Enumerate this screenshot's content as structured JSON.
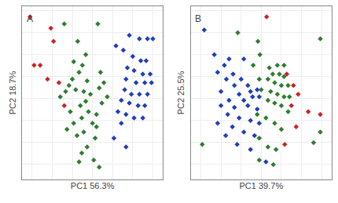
{
  "chart_data": [
    {
      "type": "scatter",
      "title": "A",
      "xlabel": "PC1 56.3%",
      "ylabel": "PC2 18.7%",
      "xlim": [
        -1.05,
        1.05
      ],
      "ylim": [
        -0.92,
        1.05
      ],
      "xticks": [
        -0.9,
        -0.6,
        -0.3,
        0,
        0.3,
        0.6,
        0.9
      ],
      "yticks": [
        -0.75,
        -0.5,
        -0.25,
        0,
        0.25,
        0.5,
        0.75,
        1
      ],
      "grid": true,
      "tick_labels": false,
      "series": [
        {
          "color": "#2e7d2e",
          "marker": "diamond",
          "x": [
            -0.42,
            0.08,
            -0.22,
            -0.1,
            -0.28,
            -0.15,
            -0.2,
            -0.3,
            -0.08,
            -0.35,
            -0.25,
            -0.13,
            -0.03,
            -0.1,
            -0.18,
            -0.33,
            -0.06,
            0.06,
            -0.16,
            -0.28,
            0.0,
            -0.38,
            -0.13,
            -0.23,
            0.04,
            -0.08,
            -0.16,
            0.12,
            0.17,
            0.1,
            0.22,
            0.14,
            0.06,
            -0.4,
            -0.48,
            0.02,
            -0.2,
            0.1
          ],
          "values": [
            0.85,
            0.85,
            0.65,
            0.5,
            0.42,
            0.38,
            0.3,
            0.22,
            0.2,
            0.15,
            0.1,
            0.08,
            0.05,
            -0.03,
            -0.08,
            -0.15,
            -0.15,
            -0.18,
            -0.22,
            -0.28,
            -0.28,
            -0.35,
            -0.38,
            -0.42,
            -0.45,
            -0.55,
            -0.62,
            0.3,
            0.18,
            0.12,
            0.02,
            -0.05,
            -0.32,
            0.08,
            0.02,
            -0.7,
            -0.72,
            -0.78
          ]
        },
        {
          "color": "#1f3fbb",
          "marker": "diamond",
          "x": [
            0.55,
            0.7,
            0.82,
            0.9,
            0.46,
            0.6,
            0.72,
            0.8,
            0.52,
            0.62,
            0.75,
            0.86,
            0.5,
            0.65,
            0.78,
            0.88,
            0.48,
            0.58,
            0.7,
            0.82,
            0.43,
            0.55,
            0.68,
            0.78,
            0.38,
            0.5,
            0.62,
            0.75,
            0.43,
            0.32,
            0.5,
            0.35
          ],
          "values": [
            0.72,
            0.68,
            0.68,
            0.68,
            0.55,
            0.48,
            0.43,
            0.43,
            0.35,
            0.32,
            0.28,
            0.28,
            0.22,
            0.18,
            0.18,
            0.18,
            0.1,
            0.05,
            0.05,
            0.05,
            -0.02,
            -0.05,
            -0.08,
            -0.08,
            -0.15,
            -0.18,
            -0.22,
            -0.22,
            -0.28,
            -0.45,
            -0.55,
            0.6
          ]
        },
        {
          "color": "#cc2222",
          "marker": "diamond",
          "x": [
            -0.93,
            -0.62,
            -0.58,
            -0.87,
            -0.78,
            -0.67,
            -0.5,
            -0.42
          ],
          "values": [
            0.93,
            0.8,
            0.65,
            0.38,
            0.38,
            0.22,
            0.18,
            -0.08
          ]
        }
      ]
    },
    {
      "type": "scatter",
      "title": "B",
      "xlabel": "PC1 39.7%",
      "ylabel": "PC2 25.5%",
      "xlim": [
        -1.05,
        1.05
      ],
      "ylim": [
        -0.92,
        1.05
      ],
      "xticks": [
        -0.9,
        -0.6,
        -0.3,
        0,
        0.3,
        0.6,
        0.9
      ],
      "yticks": [
        -0.75,
        -0.5,
        -0.25,
        0,
        0.25,
        0.5,
        0.75,
        1
      ],
      "grid": true,
      "tick_labels": false,
      "series": [
        {
          "color": "#2e7d2e",
          "marker": "diamond",
          "x": [
            -0.05,
            0.88,
            -0.02,
            -0.12,
            0.12,
            0.24,
            0.34,
            0.17,
            0.27,
            0.34,
            -0.03,
            0.1,
            0.2,
            0.3,
            0.4,
            0.0,
            0.14,
            0.24,
            0.34,
            0.42,
            0.1,
            0.2,
            0.3,
            0.4,
            -0.06,
            0.07,
            0.2,
            0.3,
            0.88,
            -0.88,
            -0.03,
            0.1,
            0.22,
            -0.03,
            0.78,
            0.18,
            -0.35
          ],
          "values": [
            0.65,
            0.68,
            0.5,
            0.38,
            0.35,
            0.38,
            0.38,
            0.28,
            0.28,
            0.25,
            0.22,
            0.22,
            0.18,
            0.15,
            0.15,
            0.1,
            0.08,
            0.05,
            0.02,
            0.02,
            -0.02,
            -0.05,
            -0.08,
            -0.15,
            -0.18,
            -0.22,
            -0.28,
            -0.35,
            -0.38,
            -0.52,
            -0.45,
            -0.55,
            -0.58,
            -0.7,
            -0.5,
            -0.75,
            0.75
          ]
        },
        {
          "color": "#1f3fbb",
          "marker": "diamond",
          "x": [
            -0.85,
            -0.55,
            -0.65,
            -0.42,
            -0.52,
            -0.3,
            -0.4,
            -0.2,
            -0.6,
            -0.33,
            -0.16,
            -0.06,
            -0.48,
            -0.26,
            -0.13,
            -0.03,
            -0.6,
            -0.4,
            -0.2,
            -0.06,
            -0.5,
            -0.33,
            -0.16,
            -0.03,
            -0.65,
            -0.43,
            -0.26,
            -0.1,
            -0.53,
            -0.36,
            -0.16,
            0.07,
            -0.7,
            -0.48,
            -0.26
          ],
          "values": [
            0.78,
            0.38,
            0.3,
            0.28,
            0.22,
            0.22,
            0.15,
            0.15,
            0.08,
            0.05,
            0.08,
            0.1,
            -0.02,
            -0.02,
            0.02,
            0.02,
            -0.08,
            -0.1,
            -0.08,
            -0.12,
            -0.18,
            -0.22,
            -0.25,
            -0.28,
            -0.28,
            -0.32,
            -0.38,
            -0.42,
            -0.42,
            -0.52,
            -0.58,
            -0.72,
            0.5,
            0.45,
            0.45
          ]
        },
        {
          "color": "#cc2222",
          "marker": "diamond",
          "x": [
            0.08,
            0.38,
            0.48,
            0.55,
            0.45,
            0.7,
            0.88,
            0.52,
            0.35
          ],
          "values": [
            0.93,
            0.28,
            0.15,
            0.05,
            -0.08,
            -0.15,
            -0.18,
            -0.32,
            -0.52
          ]
        }
      ]
    }
  ]
}
